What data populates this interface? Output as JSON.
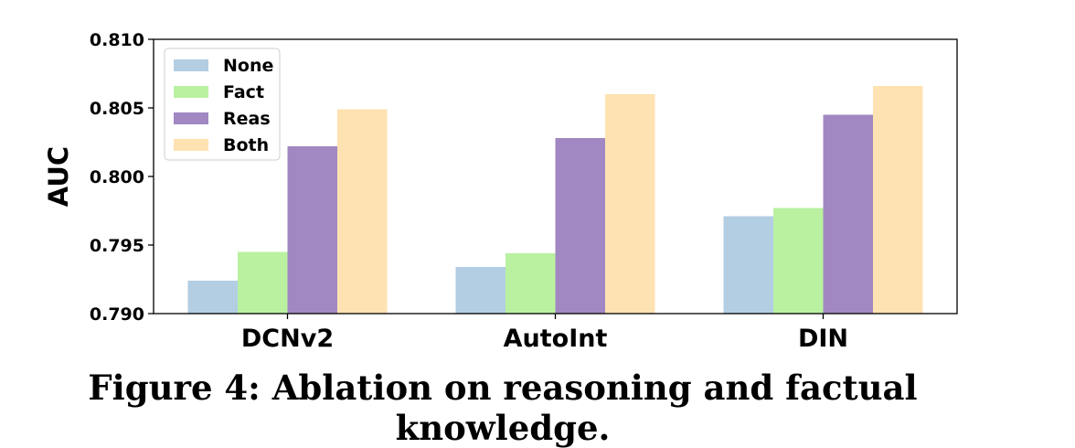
{
  "chart_data": {
    "type": "bar",
    "title": "",
    "xlabel": "",
    "ylabel": "AUC",
    "ylim": [
      0.79,
      0.81
    ],
    "yticks": [
      "0.790",
      "0.795",
      "0.800",
      "0.805",
      "0.810"
    ],
    "categories": [
      "DCNv2",
      "AutoInt",
      "DIN"
    ],
    "series": [
      {
        "name": "None",
        "color": "#b3cde3",
        "values": [
          0.7924,
          0.7934,
          0.7971
        ]
      },
      {
        "name": "Fact",
        "color": "#baf1a1",
        "values": [
          0.7945,
          0.7944,
          0.7977
        ]
      },
      {
        "name": "Reas",
        "color": "#a188c2",
        "values": [
          0.8022,
          0.8028,
          0.8045
        ]
      },
      {
        "name": "Both",
        "color": "#fee2b1",
        "values": [
          0.8049,
          0.806,
          0.8066
        ]
      }
    ],
    "grid": false,
    "legend_position": "top-left"
  },
  "caption": "Figure 4: Ablation on reasoning and factual knowledge."
}
